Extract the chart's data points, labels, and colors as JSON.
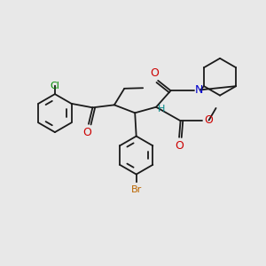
{
  "bg_color": "#e8e8e8",
  "bond_color": "#1a1a1a",
  "cl_color": "#008800",
  "br_color": "#bb6600",
  "n_color": "#0000cc",
  "o_color": "#cc0000",
  "h_color": "#008888",
  "lw": 1.3,
  "figsize": [
    3.0,
    3.0
  ],
  "dpi": 100,
  "xlim": [
    0,
    10
  ],
  "ylim": [
    0,
    10
  ]
}
